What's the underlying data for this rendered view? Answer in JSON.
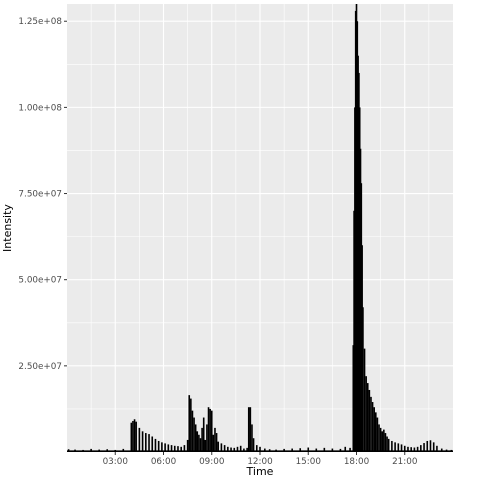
{
  "chart_data": {
    "type": "bar",
    "title": "",
    "xlabel": "Time",
    "ylabel": "Intensity",
    "x_unit": "hours",
    "xlim": [
      0,
      24
    ],
    "ylim": [
      0,
      130000000
    ],
    "x_ticks": [
      {
        "value": 3,
        "label": "03:00"
      },
      {
        "value": 6,
        "label": "06:00"
      },
      {
        "value": 9,
        "label": "09:00"
      },
      {
        "value": 12,
        "label": "12:00"
      },
      {
        "value": 15,
        "label": "15:00"
      },
      {
        "value": 18,
        "label": "18:00"
      },
      {
        "value": 21,
        "label": "21:00"
      }
    ],
    "y_ticks": [
      {
        "value": 25000000,
        "label": "2.50e+07"
      },
      {
        "value": 50000000,
        "label": "5.00e+07"
      },
      {
        "value": 75000000,
        "label": "7.50e+07"
      },
      {
        "value": 100000000,
        "label": "1.00e+08"
      },
      {
        "value": 125000000,
        "label": "1.25e+08"
      }
    ],
    "grid": true,
    "legend": "none",
    "colors": {
      "panel": "#ebebeb",
      "grid": "#ffffff",
      "bars": "#000000"
    },
    "series": [
      {
        "x": [
          0.1,
          0.5,
          1.0,
          1.5,
          2.0,
          2.5,
          3.0,
          3.5,
          4.0,
          4.1,
          4.2,
          4.3,
          4.5,
          4.7,
          4.9,
          5.1,
          5.3,
          5.5,
          5.7,
          5.9,
          6.1,
          6.3,
          6.5,
          6.7,
          6.9,
          7.1,
          7.3,
          7.5,
          7.6,
          7.7,
          7.8,
          7.9,
          8.0,
          8.1,
          8.2,
          8.3,
          8.4,
          8.5,
          8.6,
          8.7,
          8.8,
          8.9,
          9.0,
          9.1,
          9.2,
          9.3,
          9.4,
          9.6,
          9.8,
          10.0,
          10.2,
          10.4,
          10.6,
          10.8,
          11.0,
          11.2,
          11.3,
          11.4,
          11.5,
          11.6,
          11.8,
          12.0,
          12.3,
          12.6,
          13.0,
          13.5,
          14.0,
          14.5,
          15.0,
          15.5,
          16.0,
          16.5,
          17.0,
          17.3,
          17.6,
          17.8,
          17.85,
          17.9,
          17.95,
          18.0,
          18.05,
          18.1,
          18.15,
          18.2,
          18.25,
          18.3,
          18.35,
          18.4,
          18.5,
          18.6,
          18.7,
          18.8,
          18.9,
          19.0,
          19.1,
          19.2,
          19.3,
          19.4,
          19.5,
          19.6,
          19.7,
          19.8,
          19.9,
          20.0,
          20.2,
          20.4,
          20.6,
          20.8,
          21.0,
          21.2,
          21.4,
          21.6,
          21.8,
          22.0,
          22.2,
          22.4,
          22.6,
          22.8,
          23.0,
          23.3,
          23.6,
          23.9
        ],
        "values": [
          800000,
          700000,
          600000,
          900000,
          700000,
          800000,
          600000,
          900000,
          8500000,
          9000000,
          9500000,
          8800000,
          7000000,
          6000000,
          5500000,
          5200000,
          4500000,
          3800000,
          3200000,
          2800000,
          2500000,
          2200000,
          2000000,
          1800000,
          1700000,
          1500000,
          2000000,
          3500000,
          16500000,
          15500000,
          12000000,
          10000000,
          8000000,
          6000000,
          5000000,
          4000000,
          7000000,
          10000000,
          3500000,
          8000000,
          13000000,
          12500000,
          12000000,
          5000000,
          7000000,
          5500000,
          3000000,
          2500000,
          2000000,
          1500000,
          1300000,
          1200000,
          1500000,
          1800000,
          1000000,
          1200000,
          13000000,
          13000000,
          8000000,
          4000000,
          2000000,
          1500000,
          1000000,
          800000,
          700000,
          900000,
          1000000,
          1100000,
          1300000,
          1000000,
          1200000,
          1000000,
          900000,
          1500000,
          1200000,
          31000000,
          70000000,
          100000000,
          128000000,
          130000000,
          125000000,
          115000000,
          110000000,
          100000000,
          88000000,
          78000000,
          60000000,
          42000000,
          30000000,
          22000000,
          20000000,
          18000000,
          16000000,
          14500000,
          13000000,
          11500000,
          10000000,
          8000000,
          7000000,
          6000000,
          6500000,
          5500000,
          4500000,
          3800000,
          3200000,
          2800000,
          2500000,
          2200000,
          1800000,
          1500000,
          1400000,
          1300000,
          1500000,
          2000000,
          2600000,
          3200000,
          3400000,
          2800000,
          1800000,
          1000000,
          700000,
          600000
        ]
      }
    ]
  }
}
